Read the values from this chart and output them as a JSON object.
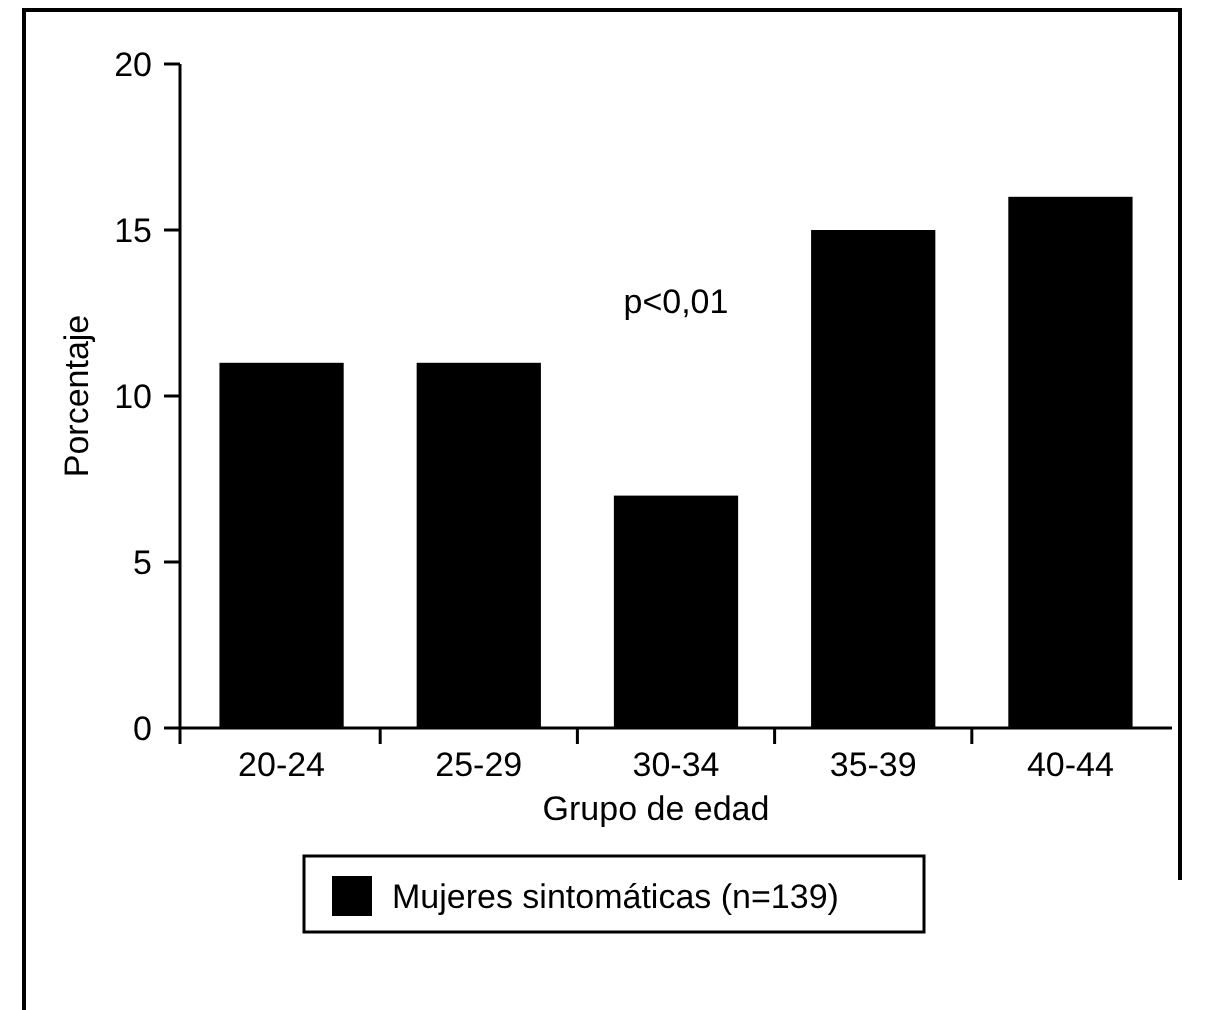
{
  "chart_data": {
    "type": "bar",
    "xlabel": "Grupo de edad",
    "ylabel": "Porcentaje",
    "categories": [
      "20-24",
      "25-29",
      "30-34",
      "35-39",
      "40-44"
    ],
    "series": [
      {
        "name": "Mujeres sintomáticas (n=139)",
        "color": "#000000",
        "values": [
          11,
          11,
          7,
          15,
          16
        ]
      }
    ],
    "ylim": [
      0,
      20
    ],
    "yticks": [
      0,
      5,
      10,
      15,
      20
    ],
    "grid": false,
    "legend": "bottom",
    "annotations": [
      "p<0,01"
    ]
  }
}
